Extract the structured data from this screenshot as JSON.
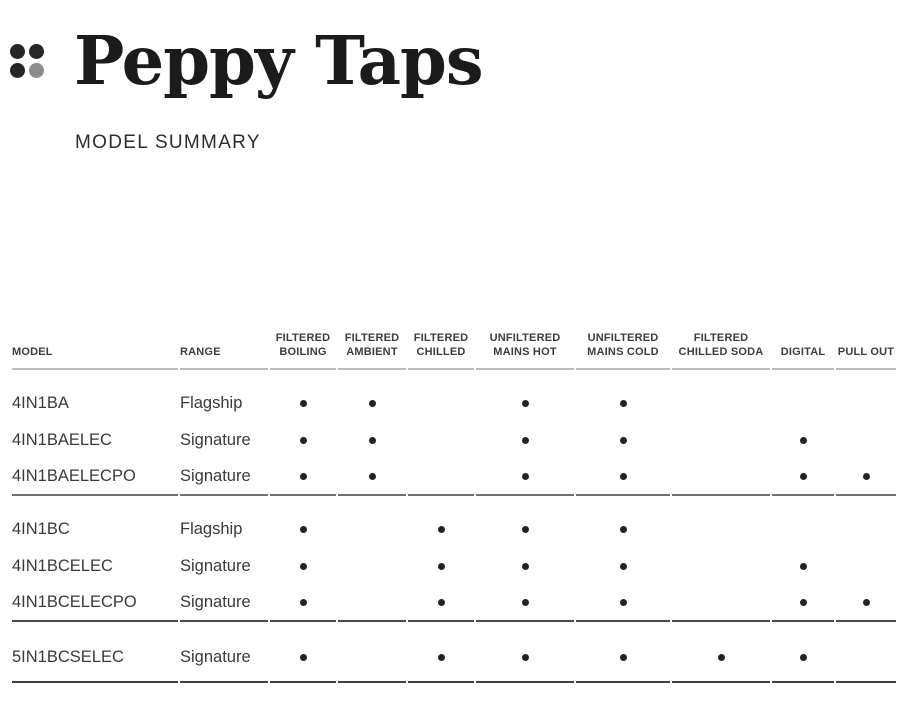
{
  "header": {
    "brand": "Peppy Taps",
    "subtitle": "MODEL SUMMARY",
    "logo_dot_colors": [
      "#262626",
      "#262626",
      "#262626",
      "#8c8c8c"
    ]
  },
  "colors": {
    "title_text": "#1b1b1d",
    "body_text": "#3a3a3a",
    "header_rule": "#bdbdbd",
    "group_rule_1": "#6f6f6f",
    "group_rule_2": "#4a4a4a",
    "bottom_rule": "#3f3f3f",
    "feature_dot": "#232323"
  },
  "table": {
    "feature_marker_icon": "filled-dot",
    "columns": [
      {
        "key": "model",
        "align": "left",
        "label_lines": [
          "MODEL"
        ]
      },
      {
        "key": "range",
        "align": "left",
        "label_lines": [
          "RANGE"
        ]
      },
      {
        "key": "filtered_boiling",
        "label_lines": [
          "FILTERED",
          "BOILING"
        ]
      },
      {
        "key": "filtered_ambient",
        "label_lines": [
          "FILTERED",
          "AMBIENT"
        ]
      },
      {
        "key": "filtered_chilled",
        "label_lines": [
          "FILTERED",
          "CHILLED"
        ]
      },
      {
        "key": "unfiltered_mains_hot",
        "label_lines": [
          "UNFILTERED",
          "MAINS HOT"
        ]
      },
      {
        "key": "unfiltered_mains_cold",
        "label_lines": [
          "UNFILTERED",
          "MAINS COLD"
        ]
      },
      {
        "key": "filtered_chilled_soda",
        "label_lines": [
          "FILTERED",
          "CHILLED SODA"
        ]
      },
      {
        "key": "digital",
        "label_lines": [
          "DIGITAL"
        ]
      },
      {
        "key": "pull_out",
        "label_lines": [
          "PULL OUT"
        ]
      }
    ],
    "rows": [
      {
        "model": "4IN1BA",
        "range": "Flagship",
        "group": 1,
        "features": [
          1,
          1,
          0,
          1,
          1,
          0,
          0,
          0
        ]
      },
      {
        "model": "4IN1BAELEC",
        "range": "Signature",
        "group": 1,
        "features": [
          1,
          1,
          0,
          1,
          1,
          0,
          1,
          0
        ]
      },
      {
        "model": "4IN1BAELECPO",
        "range": "Signature",
        "group": 1,
        "features": [
          1,
          1,
          0,
          1,
          1,
          0,
          1,
          1
        ]
      },
      {
        "model": "4IN1BC",
        "range": "Flagship",
        "group": 2,
        "features": [
          1,
          0,
          1,
          1,
          1,
          0,
          0,
          0
        ]
      },
      {
        "model": "4IN1BCELEC",
        "range": "Signature",
        "group": 2,
        "features": [
          1,
          0,
          1,
          1,
          1,
          0,
          1,
          0
        ]
      },
      {
        "model": "4IN1BCELECPO",
        "range": "Signature",
        "group": 2,
        "features": [
          1,
          0,
          1,
          1,
          1,
          0,
          1,
          1
        ]
      },
      {
        "model": "5IN1BCSELEC",
        "range": "Signature",
        "group": 3,
        "features": [
          1,
          0,
          1,
          1,
          1,
          1,
          1,
          0
        ]
      }
    ]
  }
}
